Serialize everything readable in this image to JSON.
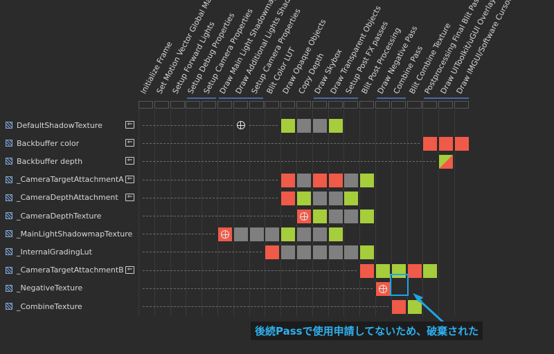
{
  "passes": [
    "Initialize Frame",
    "Set Motion Vector Global Matri...",
    "Setup Forward Lights",
    "Setup Debug Properties",
    "Setup Camera Properties",
    "Draw Main Light Shadowmap",
    "Draw Additional Lights Shadow...",
    "Setup Camera Properties",
    "Blit Color LUT",
    "Draw Opaque Objects",
    "Copy Depth",
    "Draw Skybox",
    "Draw Transparent Objects",
    "Setup Post FX passes",
    "Blit Post Processing",
    "Draw Negative Pass",
    "Combine Pass",
    "Blit Combine Texture",
    "Postprocessing Final Blit Pass",
    "Draw UIToolkit/uGUI Overlay",
    "Draw IMGUI/Software Cursor O..."
  ],
  "resources": [
    {
      "name": "DefaultShadowTexture",
      "imported": true,
      "start": 2,
      "globe": 6,
      "cells": [
        [
          9,
          "green"
        ],
        [
          10,
          "gray"
        ],
        [
          11,
          "gray"
        ],
        [
          12,
          "green"
        ]
      ]
    },
    {
      "name": "Backbuffer color",
      "imported": true,
      "start": 2,
      "globe": -1,
      "cells": [
        [
          18,
          "red"
        ],
        [
          19,
          "red"
        ],
        [
          20,
          "red"
        ]
      ]
    },
    {
      "name": "Backbuffer depth",
      "imported": true,
      "start": 2,
      "globe": -1,
      "cells": [
        [
          19,
          "rg"
        ]
      ]
    },
    {
      "name": "_CameraTargetAttachmentA",
      "imported": true,
      "start": 2,
      "globe": -1,
      "cells": [
        [
          9,
          "red"
        ],
        [
          10,
          "gray"
        ],
        [
          11,
          "red"
        ],
        [
          12,
          "red"
        ],
        [
          13,
          "gray"
        ],
        [
          14,
          "green"
        ]
      ]
    },
    {
      "name": "_CameraDepthAttachment",
      "imported": true,
      "start": 2,
      "globe": -1,
      "cells": [
        [
          9,
          "red"
        ],
        [
          10,
          "green"
        ],
        [
          11,
          "gray"
        ],
        [
          12,
          "gray"
        ],
        [
          13,
          "green"
        ]
      ]
    },
    {
      "name": "_CameraDepthTexture",
      "imported": false,
      "start": 2,
      "globe": -1,
      "cells": [
        [
          10,
          "red-globe"
        ],
        [
          11,
          "green"
        ],
        [
          12,
          "gray"
        ],
        [
          13,
          "gray"
        ],
        [
          14,
          "green"
        ]
      ]
    },
    {
      "name": "_MainLightShadowmapTexture",
      "imported": false,
      "start": 2,
      "globe": -1,
      "cells": [
        [
          5,
          "red-globe"
        ],
        [
          6,
          "gray"
        ],
        [
          7,
          "gray"
        ],
        [
          8,
          "gray"
        ],
        [
          9,
          "green"
        ],
        [
          10,
          "gray"
        ],
        [
          11,
          "gray"
        ],
        [
          12,
          "green"
        ]
      ]
    },
    {
      "name": "_InternalGradingLut",
      "imported": false,
      "start": 2,
      "globe": -1,
      "cells": [
        [
          8,
          "red"
        ],
        [
          9,
          "gray"
        ],
        [
          10,
          "gray"
        ],
        [
          11,
          "gray"
        ],
        [
          12,
          "gray"
        ],
        [
          13,
          "gray"
        ],
        [
          14,
          "green"
        ]
      ]
    },
    {
      "name": "_CameraTargetAttachmentB",
      "imported": true,
      "start": 2,
      "globe": -1,
      "cells": [
        [
          14,
          "red"
        ],
        [
          15,
          "green"
        ],
        [
          16,
          "green"
        ],
        [
          17,
          "red"
        ],
        [
          18,
          "green"
        ]
      ]
    },
    {
      "name": "_NegativeTexture",
      "imported": false,
      "start": 2,
      "globe": -1,
      "cells": [
        [
          15,
          "red-globe"
        ]
      ]
    },
    {
      "name": "_CombineTexture",
      "imported": false,
      "start": 2,
      "globe": -1,
      "cells": [
        [
          16,
          "red"
        ],
        [
          17,
          "green"
        ]
      ]
    }
  ],
  "group_bars": [
    [
      3,
      4
    ],
    [
      5,
      7
    ],
    [
      11,
      13
    ],
    [
      15,
      16
    ],
    [
      18,
      20
    ]
  ],
  "highlight": {
    "row": 9,
    "col": 16
  },
  "annotation": "後続Passで使用申請してないため、破棄された",
  "colors": {
    "red": "#f05a48",
    "green": "#a6cd3c",
    "gray": "#7f7f7f",
    "accent": "#1fa6e6"
  }
}
